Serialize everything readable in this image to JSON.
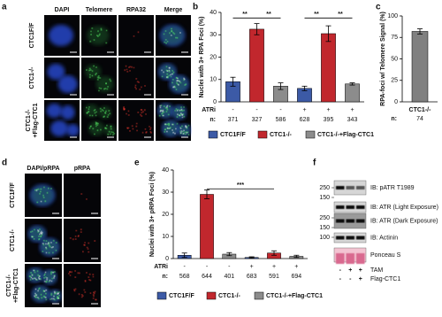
{
  "panel_letters": [
    "a",
    "b",
    "c",
    "d",
    "e",
    "f"
  ],
  "panel_a": {
    "columns": [
      {
        "label": "DAPI",
        "color": "#3b6fe0"
      },
      {
        "label": "Telomere",
        "color": "#3fbf4f"
      },
      {
        "label": "RPA32",
        "color": "#e0302a"
      },
      {
        "label": "Merge",
        "color": "#111111"
      }
    ],
    "rows": [
      [
        "CTC1F/F"
      ],
      [
        "CTC1-/-"
      ],
      [
        "CTC1-/-",
        "+Flag-CTC1"
      ]
    ]
  },
  "panel_d": {
    "columns": [
      {
        "label": "DAPI/pRPA",
        "color": "#3b6fe0"
      },
      {
        "label": "pRPA",
        "color": "#e0302a"
      }
    ],
    "rows": [
      [
        "CTC1F/F"
      ],
      [
        "CTC1-/-"
      ],
      [
        "CTC1-/-",
        "+Flag-CTC1"
      ]
    ]
  },
  "chart_data": [
    {
      "type": "bar",
      "ylabel": "Nuclei with 3+ RPA Foci (%)",
      "values": [
        9,
        32.5,
        7,
        6,
        30.5,
        8
      ],
      "errors": [
        2,
        2.5,
        1.5,
        1,
        3.5,
        0.5
      ],
      "colors": [
        "#3c5aa6",
        "#c1272d",
        "#8c8c8c",
        "#3c5aa6",
        "#c1272d",
        "#8c8c8c"
      ],
      "ylim": [
        0,
        40
      ],
      "yticks": [
        0,
        10,
        20,
        30,
        40
      ],
      "rows": [
        {
          "label": "ATRi",
          "values": [
            "-",
            "-",
            "-",
            "+",
            "+",
            "+"
          ]
        },
        {
          "label": "n:",
          "values": [
            371,
            327,
            586,
            628,
            395,
            343
          ]
        }
      ],
      "annotations": [
        "**",
        "**",
        "**",
        "**"
      ],
      "legend": [
        {
          "name": "CTC1F/F",
          "color": "#3c5aa6"
        },
        {
          "name": "CTC1-/-",
          "color": "#c1272d"
        },
        {
          "name": "CTC1-/-+Flag-CTC1",
          "color": "#8c8c8c"
        }
      ]
    },
    {
      "type": "bar",
      "ylabel": "RPA-foci w/ Telomere Signal (%)",
      "categories": [
        "CTC1-/-"
      ],
      "values": [
        82
      ],
      "errors": [
        3
      ],
      "colors": [
        "#808080"
      ],
      "ylim": [
        0,
        100
      ],
      "yticks": [
        0,
        25,
        50,
        75,
        100
      ],
      "rows": [
        {
          "label": "n:",
          "values": [
            74
          ]
        }
      ]
    },
    {
      "type": "bar",
      "ylabel": "Nuclei with 3+ pRPA Foci (%)",
      "values": [
        1.5,
        29,
        2,
        0.5,
        2.5,
        1
      ],
      "errors": [
        1,
        2,
        0.7,
        0.3,
        1,
        0.5
      ],
      "colors": [
        "#3c5aa6",
        "#c1272d",
        "#8c8c8c",
        "#3c5aa6",
        "#c1272d",
        "#8c8c8c"
      ],
      "ylim": [
        0,
        40
      ],
      "yticks": [
        0,
        10,
        20,
        30,
        40
      ],
      "rows": [
        {
          "label": "ATRi",
          "values": [
            "-",
            "-",
            "-",
            "+",
            "+",
            "+"
          ]
        },
        {
          "label": "n:",
          "values": [
            568,
            644,
            401,
            683,
            591,
            694
          ]
        }
      ],
      "annotations": [
        "***"
      ],
      "legend": [
        {
          "name": "CTC1F/F",
          "color": "#3c5aa6"
        },
        {
          "name": "CTC1-/-",
          "color": "#c1272d"
        },
        {
          "name": "CTC1-/-+Flag-CTC1",
          "color": "#8c8c8c"
        }
      ]
    }
  ],
  "blot": {
    "markers": [
      250,
      150,
      250,
      150,
      100
    ],
    "labels": [
      "IB: pATR T1989",
      "IB: ATR (Light Exposure)",
      "IB: ATR (Dark Exposure)",
      "IB: Actinin",
      "Ponceau S"
    ],
    "conditions": [
      {
        "label": "TAM",
        "values": [
          "-",
          "+",
          "+"
        ]
      },
      {
        "label": "Flag-CTC1",
        "values": [
          "-",
          "-",
          "+"
        ]
      }
    ]
  }
}
